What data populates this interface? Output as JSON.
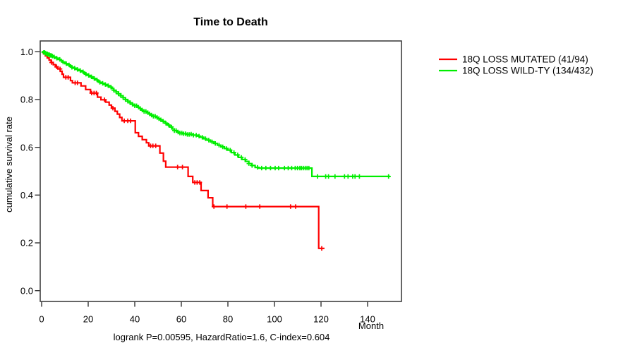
{
  "chart_data": {
    "type": "line",
    "subtype": "kaplan-meier-step",
    "title": "Time to Death",
    "xlabel": "Month",
    "ylabel": "cumulative survival rate",
    "footnote": "logrank P=0.00595, HazardRatio=1.6, C-index=0.604",
    "xlim": [
      0,
      154
    ],
    "ylim": [
      0.0,
      1.04
    ],
    "xticks": [
      0,
      20,
      40,
      60,
      80,
      100,
      120,
      140
    ],
    "yticks": [
      0.0,
      0.2,
      0.4,
      0.6,
      0.8,
      1.0
    ],
    "grid": false,
    "legend_position": "right-outside",
    "axis_color": "#333333",
    "background": "#ffffff",
    "series": [
      {
        "name": "18Q LOSS MUTATED (41/94)",
        "events": 41,
        "n": 94,
        "color": "#ff0000",
        "end_time": 121.5,
        "points": [
          [
            0,
            1.0
          ],
          [
            0.8,
            0.992
          ],
          [
            1.6,
            0.983
          ],
          [
            2.4,
            0.974
          ],
          [
            3.2,
            0.965
          ],
          [
            4.1,
            0.955
          ],
          [
            5,
            0.946
          ],
          [
            6,
            0.937
          ],
          [
            7,
            0.928
          ],
          [
            8,
            0.918
          ],
          [
            8.8,
            0.906
          ],
          [
            9.4,
            0.893
          ],
          [
            12.4,
            0.879
          ],
          [
            13.2,
            0.87
          ],
          [
            16.9,
            0.857
          ],
          [
            18.9,
            0.842
          ],
          [
            21,
            0.827
          ],
          [
            24,
            0.81
          ],
          [
            25.5,
            0.799
          ],
          [
            27.5,
            0.789
          ],
          [
            29,
            0.777
          ],
          [
            30,
            0.764
          ],
          [
            31.5,
            0.751
          ],
          [
            32.5,
            0.739
          ],
          [
            33.5,
            0.725
          ],
          [
            34.5,
            0.711
          ],
          [
            40.2,
            0.661
          ],
          [
            41.6,
            0.646
          ],
          [
            43.2,
            0.632
          ],
          [
            45,
            0.619
          ],
          [
            46,
            0.606
          ],
          [
            50.8,
            0.576
          ],
          [
            52.3,
            0.542
          ],
          [
            53.3,
            0.517
          ],
          [
            62.9,
            0.478
          ],
          [
            64.9,
            0.453
          ],
          [
            68.5,
            0.419
          ],
          [
            71.5,
            0.389
          ],
          [
            73.5,
            0.352
          ],
          [
            119,
            0.177
          ]
        ],
        "censor_times": [
          4.3,
          6.4,
          7.9,
          10.4,
          11.4,
          14.4,
          15.4,
          21.5,
          22.5,
          23.5,
          27,
          30.6,
          35.5,
          37,
          38.2,
          46.8,
          47.8,
          49,
          58.4,
          60.5,
          65.8,
          66.8,
          67.9,
          74,
          79.6,
          87.7,
          93.7,
          106.9,
          109.1,
          120.3
        ]
      },
      {
        "name": "18Q LOSS WILD-TY (134/432)",
        "events": 134,
        "n": 432,
        "color": "#00ee00",
        "end_time": 149.7,
        "points": [
          [
            0,
            1.0
          ],
          [
            0.7,
            0.997
          ],
          [
            1.4,
            0.994
          ],
          [
            2.1,
            0.991
          ],
          [
            2.8,
            0.988
          ],
          [
            3.5,
            0.985
          ],
          [
            4.2,
            0.982
          ],
          [
            5,
            0.978
          ],
          [
            6,
            0.973
          ],
          [
            7,
            0.968
          ],
          [
            8,
            0.963
          ],
          [
            9,
            0.957
          ],
          [
            10,
            0.95
          ],
          [
            11,
            0.945
          ],
          [
            12,
            0.94
          ],
          [
            13,
            0.935
          ],
          [
            14,
            0.931
          ],
          [
            15,
            0.926
          ],
          [
            16,
            0.921
          ],
          [
            17,
            0.916
          ],
          [
            18,
            0.911
          ],
          [
            19,
            0.906
          ],
          [
            20,
            0.901
          ],
          [
            21,
            0.895
          ],
          [
            22,
            0.888
          ],
          [
            23,
            0.882
          ],
          [
            24,
            0.877
          ],
          [
            25,
            0.872
          ],
          [
            26,
            0.868
          ],
          [
            27,
            0.863
          ],
          [
            28,
            0.858
          ],
          [
            29,
            0.852
          ],
          [
            30,
            0.846
          ],
          [
            31,
            0.839
          ],
          [
            32,
            0.832
          ],
          [
            33,
            0.824
          ],
          [
            34,
            0.816
          ],
          [
            35,
            0.808
          ],
          [
            36,
            0.8
          ],
          [
            37,
            0.793
          ],
          [
            38,
            0.786
          ],
          [
            39,
            0.78
          ],
          [
            40,
            0.774
          ],
          [
            41,
            0.768
          ],
          [
            42,
            0.762
          ],
          [
            43,
            0.756
          ],
          [
            44,
            0.75
          ],
          [
            45,
            0.745
          ],
          [
            46,
            0.74
          ],
          [
            47,
            0.735
          ],
          [
            48,
            0.73
          ],
          [
            49,
            0.725
          ],
          [
            50,
            0.72
          ],
          [
            51,
            0.715
          ],
          [
            52,
            0.709
          ],
          [
            53,
            0.701
          ],
          [
            54,
            0.693
          ],
          [
            55,
            0.685
          ],
          [
            56,
            0.677
          ],
          [
            57,
            0.67
          ],
          [
            58,
            0.664
          ],
          [
            59,
            0.66
          ],
          [
            60.5,
            0.657
          ],
          [
            62,
            0.654
          ],
          [
            63.5,
            0.655
          ],
          [
            65,
            0.651
          ],
          [
            66.5,
            0.647
          ],
          [
            68,
            0.642
          ],
          [
            69.5,
            0.636
          ],
          [
            71,
            0.63
          ],
          [
            72.5,
            0.623
          ],
          [
            74,
            0.616
          ],
          [
            75.5,
            0.609
          ],
          [
            77,
            0.602
          ],
          [
            78.5,
            0.595
          ],
          [
            80,
            0.588
          ],
          [
            81.5,
            0.578
          ],
          [
            83,
            0.568
          ],
          [
            84.5,
            0.558
          ],
          [
            86,
            0.549
          ],
          [
            87.5,
            0.541
          ],
          [
            89,
            0.532
          ],
          [
            90.3,
            0.524
          ],
          [
            91.7,
            0.516
          ],
          [
            93.3,
            0.513
          ],
          [
            116.1,
            0.478
          ]
        ],
        "censor_times": [
          0.9,
          1.3,
          1.7,
          2.1,
          2.5,
          2.9,
          3.3,
          3.7,
          4.1,
          4.6,
          5.4,
          6.5,
          7.8,
          9.2,
          10.6,
          11.8,
          13,
          14.2,
          15.4,
          16.6,
          17.8,
          19,
          20.2,
          21.4,
          22.6,
          23.8,
          25,
          26.2,
          27.4,
          28.6,
          29.8,
          31,
          32,
          33,
          34,
          35,
          36,
          37,
          38,
          39,
          40,
          40.8,
          41.6,
          42.4,
          43.2,
          44,
          44.8,
          45.6,
          46.4,
          47.2,
          48,
          48.8,
          49.6,
          50.4,
          51.2,
          52.2,
          53.4,
          54.6,
          55.8,
          57,
          57.8,
          58.6,
          59.4,
          60.2,
          61,
          61.8,
          62.6,
          63.4,
          64.2,
          65.2,
          66.4,
          67.6,
          69,
          70.4,
          71.8,
          73.2,
          74.6,
          76.2,
          77.8,
          79.4,
          81,
          82.6,
          84.2,
          85.8,
          87.4,
          89,
          90.4,
          92.7,
          94.5,
          96.3,
          98.3,
          100.3,
          101.8,
          104.3,
          105.9,
          107.4,
          108.9,
          109.9,
          110.9,
          111.6,
          112.4,
          113.2,
          114,
          114.8,
          118.5,
          122,
          123.2,
          126,
          130.1,
          131.6,
          133.6,
          134.6,
          136.5,
          149
        ]
      }
    ]
  }
}
